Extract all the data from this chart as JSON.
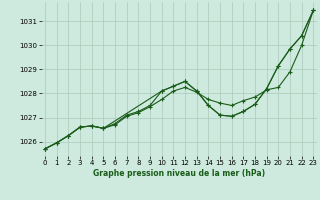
{
  "title": "Graphe pression niveau de la mer (hPa)",
  "bg_color": "#ceeade",
  "grid_color": "#aacaba",
  "line_color": "#1a5c1a",
  "x_ticks": [
    0,
    1,
    2,
    3,
    4,
    5,
    6,
    7,
    8,
    9,
    10,
    11,
    12,
    13,
    14,
    15,
    16,
    17,
    18,
    19,
    20,
    21,
    22,
    23
  ],
  "y_ticks": [
    1026,
    1027,
    1028,
    1029,
    1030,
    1031
  ],
  "ylim": [
    1025.4,
    1031.8
  ],
  "xlim": [
    -0.3,
    23.3
  ],
  "series": [
    {
      "x": [
        0,
        1,
        2,
        3,
        4,
        5,
        6,
        7,
        8,
        9,
        10,
        11,
        12,
        13,
        14,
        15,
        16,
        17,
        18,
        19,
        20,
        21,
        22,
        23
      ],
      "y": [
        1025.7,
        1025.95,
        1026.25,
        1026.6,
        1026.65,
        1026.55,
        1026.7,
        1027.05,
        1027.2,
        1027.45,
        1027.75,
        1028.1,
        1028.25,
        1028.05,
        1027.75,
        1027.6,
        1027.5,
        1027.7,
        1027.85,
        1028.15,
        1028.25,
        1028.9,
        1030.0,
        1031.45
      ]
    },
    {
      "x": [
        0,
        1,
        2,
        3,
        4,
        5,
        6,
        7,
        8,
        9,
        10,
        11,
        12,
        13,
        14,
        15,
        16,
        17,
        18,
        19,
        20,
        21,
        22,
        23
      ],
      "y": [
        1025.7,
        1025.95,
        1026.25,
        1026.6,
        1026.65,
        1026.55,
        1026.75,
        1027.1,
        1027.25,
        1027.5,
        1028.1,
        1028.3,
        1028.5,
        1028.1,
        1027.5,
        1027.1,
        1027.05,
        1027.25,
        1027.55,
        1028.2,
        1029.15,
        1029.85,
        1030.4,
        1031.45
      ]
    },
    {
      "x": [
        0,
        1,
        2,
        3,
        4,
        5,
        10,
        11,
        12,
        13,
        14,
        15,
        16,
        17,
        18,
        19,
        20,
        21,
        22,
        23
      ],
      "y": [
        1025.7,
        1025.95,
        1026.25,
        1026.6,
        1026.65,
        1026.55,
        1028.1,
        1028.3,
        1028.5,
        1028.1,
        1027.5,
        1027.1,
        1027.05,
        1027.25,
        1027.55,
        1028.2,
        1029.15,
        1029.85,
        1030.4,
        1031.45
      ]
    }
  ]
}
